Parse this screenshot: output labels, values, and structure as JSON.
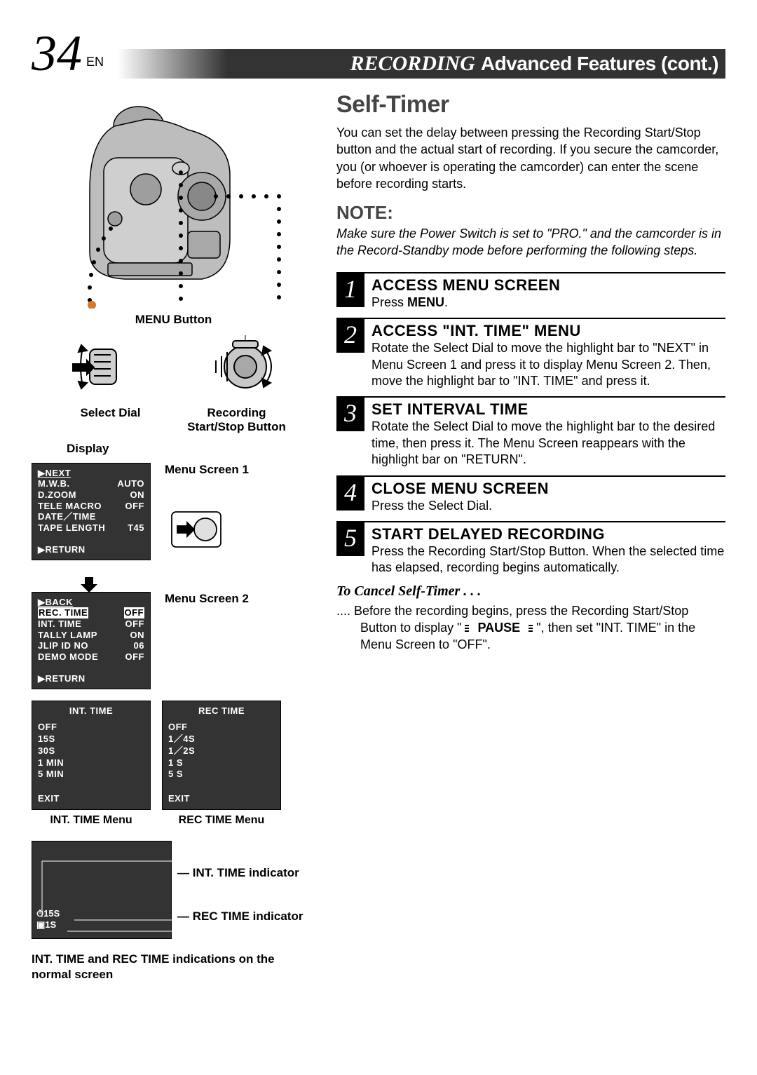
{
  "page": {
    "number": "34",
    "lang": "EN"
  },
  "header": {
    "main": "RECORDING",
    "sub": "Advanced Features (cont.)"
  },
  "left": {
    "menu_button": "MENU Button",
    "select_dial": "Select Dial",
    "rec_button": "Recording Start/Stop Button",
    "display": "Display",
    "menu1_label": "Menu Screen 1",
    "menu2_label": "Menu Screen 2",
    "lcd1": {
      "rows": [
        {
          "l": "▶NEXT",
          "inv": true
        },
        {
          "l": "M.W.B.",
          "r": "AUTO"
        },
        {
          "l": "D.ZOOM",
          "r": "ON"
        },
        {
          "l": "TELE MACRO",
          "r": "OFF"
        },
        {
          "l": "DATE／TIME",
          "r": ""
        },
        {
          "l": "TAPE LENGTH",
          "r": "T45"
        }
      ],
      "return": "▶RETURN"
    },
    "lcd2": {
      "rows": [
        {
          "l": "▶BACK",
          "inv": true
        },
        {
          "l": "REC. TIME",
          "r": "OFF",
          "inv_row": true
        },
        {
          "l": "INT. TIME",
          "r": "OFF"
        },
        {
          "l": "TALLY LAMP",
          "r": "ON"
        },
        {
          "l": "JLIP ID NO",
          "r": "06"
        },
        {
          "l": "DEMO MODE",
          "r": "OFF"
        }
      ],
      "return": "▶RETURN"
    },
    "int_time": {
      "title": "INT. TIME",
      "opts": [
        "OFF",
        "15S",
        "30S",
        "1 MIN",
        "5 MIN"
      ],
      "selected": "15S",
      "exit": "EXIT",
      "caption": "INT. TIME Menu"
    },
    "rec_time": {
      "title": "REC TIME",
      "opts": [
        "OFF",
        "1／4S",
        "1／2S",
        "1 S",
        "5 S"
      ],
      "selected": "1 S",
      "exit": "EXIT",
      "caption": "REC TIME Menu"
    },
    "ind": {
      "t1": "⏱15S",
      "t2": "▣1S",
      "label1": "INT. TIME indicator",
      "label2": "REC TIME indicator"
    },
    "bottom_caption": "INT. TIME and REC TIME indications on the normal screen"
  },
  "right": {
    "title": "Self-Timer",
    "intro": "You can set the delay between pressing the Recording Start/Stop button and the actual start of recording. If you secure the camcorder, you (or whoever is operating the camcorder) can enter the scene before recording starts.",
    "note_head": "NOTE:",
    "note_body": "Make sure the Power Switch is set to \"PRO.\" and the camcorder is in the Record-Standby mode before performing the following steps.",
    "steps": [
      {
        "n": "1",
        "t": "ACCESS MENU SCREEN",
        "b_pre": "Press ",
        "b_bold": "MENU",
        "b_post": "."
      },
      {
        "n": "2",
        "t": "ACCESS \"INT. TIME\" MENU",
        "b": "Rotate the Select Dial to move the highlight bar to \"NEXT\" in Menu Screen 1 and press it to display Menu Screen 2. Then, move the highlight bar to \"INT. TIME\" and press it."
      },
      {
        "n": "3",
        "t": "SET INTERVAL TIME",
        "b": "Rotate the Select Dial to move the highlight bar to the desired time, then press it. The Menu Screen reappears with the highlight bar on \"RETURN\"."
      },
      {
        "n": "4",
        "t": "CLOSE MENU SCREEN",
        "b": "Press the Select Dial."
      },
      {
        "n": "5",
        "t": "START DELAYED RECORDING",
        "b": "Press the Recording Start/Stop Button. When the selected time has elapsed, recording begins automatically."
      }
    ],
    "cancel_head": "To Cancel Self-Timer . . .",
    "cancel_pre": ".... Before the recording begins, press the Recording Start/Stop Button to display \" ",
    "cancel_bold": "PAUSE",
    "cancel_post": " \", then set \"INT. TIME\" in the Menu Screen to \"OFF\"."
  }
}
